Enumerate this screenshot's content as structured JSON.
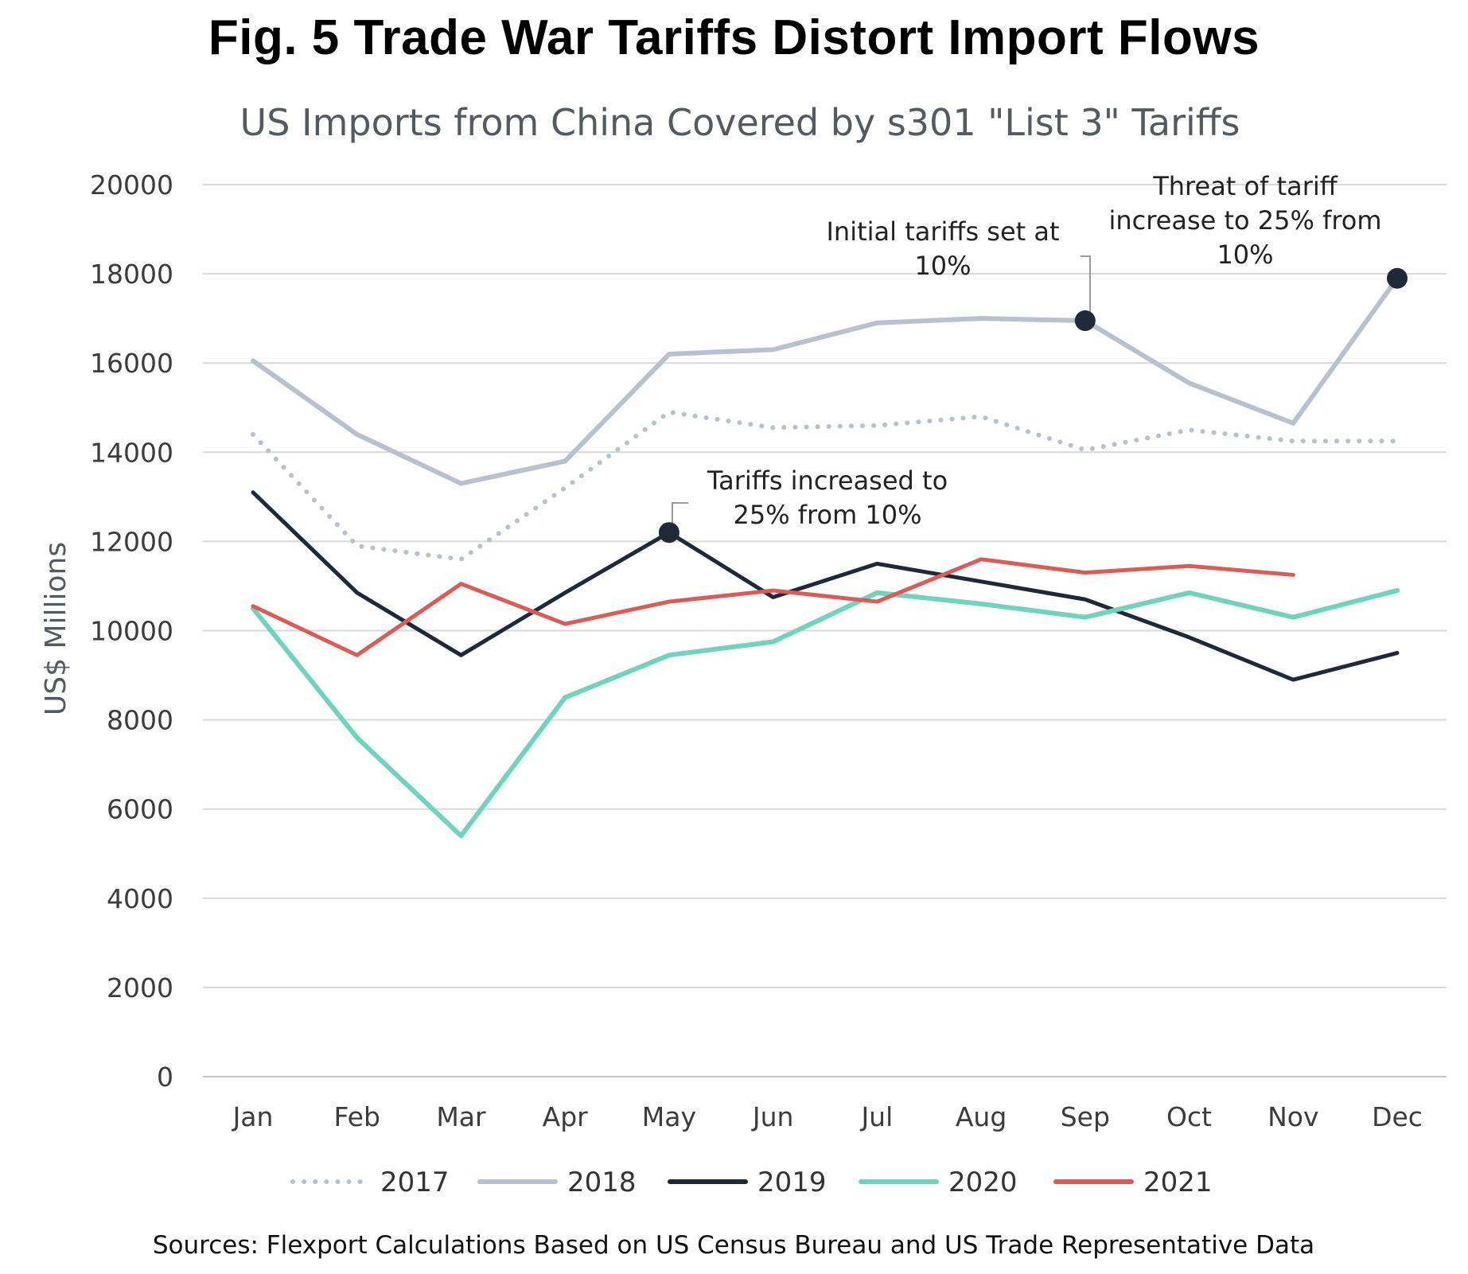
{
  "title": "Fig. 5 Trade War Tariffs Distort Import Flows",
  "source": "Sources: Flexport Calculations Based on US Census Bureau and US Trade Representative Data",
  "chart_data": {
    "type": "line",
    "title": "US Imports from China Covered by s301 \"List 3\" Tariffs",
    "xlabel": "",
    "ylabel": "US$ Millions",
    "ylim": [
      0,
      20000
    ],
    "yticks": [
      0,
      2000,
      4000,
      6000,
      8000,
      10000,
      12000,
      14000,
      16000,
      18000,
      20000
    ],
    "grid": true,
    "legend_position": "bottom",
    "categories": [
      "Jan",
      "Feb",
      "Mar",
      "Apr",
      "May",
      "Jun",
      "Jul",
      "Aug",
      "Sep",
      "Oct",
      "Nov",
      "Dec"
    ],
    "series": [
      {
        "name": "2017",
        "color": "#b8c1cc",
        "style": "dotted",
        "values": [
          14400,
          11900,
          11600,
          13200,
          14900,
          14550,
          14600,
          14800,
          14050,
          14500,
          14250,
          14250
        ]
      },
      {
        "name": "2018",
        "color": "#b8c1cc",
        "style": "solid",
        "values": [
          16050,
          14400,
          13300,
          13800,
          16200,
          16300,
          16900,
          17000,
          16950,
          15550,
          14650,
          17900
        ]
      },
      {
        "name": "2019",
        "color": "#1f2937",
        "style": "solid",
        "values": [
          13100,
          10850,
          9450,
          10850,
          12200,
          10750,
          11500,
          11100,
          10700,
          9850,
          8900,
          9500
        ]
      },
      {
        "name": "2020",
        "color": "#6fd4bd",
        "style": "solid",
        "values": [
          10500,
          7600,
          5400,
          8500,
          9450,
          9750,
          10850,
          10600,
          10300,
          10850,
          10300,
          10900
        ]
      },
      {
        "name": "2021",
        "color": "#e05a55",
        "style": "solid",
        "values": [
          10550,
          9450,
          11050,
          10150,
          10650,
          10900,
          10650,
          11600,
          11300,
          11450,
          11250,
          null
        ]
      }
    ],
    "annotations": [
      {
        "series": "2018",
        "month": "Sep",
        "value": 16950,
        "lines": [
          "Initial tariffs set at",
          "10%"
        ]
      },
      {
        "series": "2018",
        "month": "Dec",
        "value": 17900,
        "lines": [
          "Threat of tariff",
          "increase to 25% from",
          "10%"
        ]
      },
      {
        "series": "2019",
        "month": "May",
        "value": 12200,
        "lines": [
          "Tariffs increased to",
          "25% from 10%"
        ]
      }
    ]
  }
}
